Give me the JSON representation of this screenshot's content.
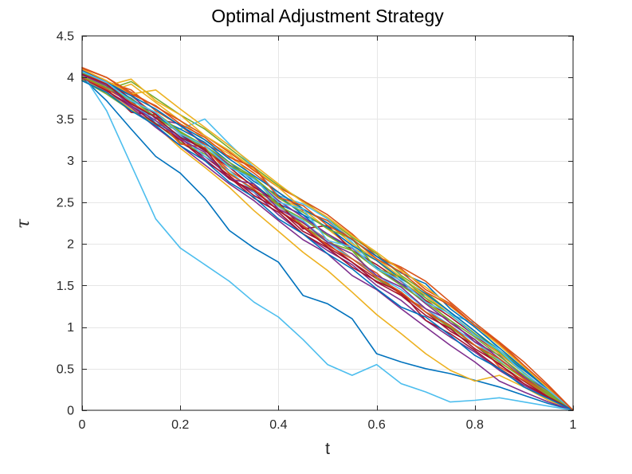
{
  "chart_data": {
    "type": "line",
    "title": "Optimal Adjustment Strategy",
    "xlabel": "t",
    "ylabel": "τ",
    "xlim": [
      0,
      1
    ],
    "ylim": [
      0,
      4.5
    ],
    "xticks": [
      0,
      0.2,
      0.4,
      0.6,
      0.8,
      1
    ],
    "xtick_labels": [
      "0",
      "0.2",
      "0.4",
      "0.6",
      "0.8",
      "1"
    ],
    "yticks": [
      0,
      0.5,
      1,
      1.5,
      2,
      2.5,
      3,
      3.5,
      4,
      4.5
    ],
    "ytick_labels": [
      "0",
      "0.5",
      "1",
      "1.5",
      "2",
      "2.5",
      "3",
      "3.5",
      "4",
      "4.5"
    ],
    "grid": true,
    "legend": false,
    "axis_color": "#262626",
    "grid_color": "#e6e6e6",
    "background": "#ffffff",
    "palette": [
      "#0072BD",
      "#D95319",
      "#EDB120",
      "#7E2F8E",
      "#77AC30",
      "#4DBEEE",
      "#A2142F"
    ],
    "x": [
      0,
      0.05,
      0.1,
      0.15,
      0.2,
      0.25,
      0.3,
      0.35,
      0.4,
      0.45,
      0.5,
      0.55,
      0.6,
      0.65,
      0.7,
      0.75,
      0.8,
      0.85,
      0.9,
      0.95,
      1
    ],
    "series": [
      {
        "color_index": 0,
        "values": [
          4.02,
          3.88,
          3.72,
          3.45,
          3.3,
          3.12,
          2.95,
          2.72,
          2.48,
          2.35,
          2.1,
          1.95,
          1.72,
          1.52,
          1.38,
          1.15,
          0.92,
          0.68,
          0.45,
          0.22,
          0
        ]
      },
      {
        "color_index": 1,
        "values": [
          4.08,
          3.95,
          3.85,
          3.6,
          3.42,
          3.2,
          3.05,
          2.85,
          2.62,
          2.4,
          2.28,
          2.05,
          1.85,
          1.7,
          1.45,
          1.28,
          1.02,
          0.8,
          0.52,
          0.25,
          0
        ]
      },
      {
        "color_index": 2,
        "values": [
          3.98,
          3.82,
          3.92,
          3.7,
          3.48,
          3.25,
          3.08,
          2.8,
          2.55,
          2.42,
          2.18,
          1.95,
          1.8,
          1.55,
          1.35,
          1.05,
          0.85,
          0.58,
          0.38,
          0.18,
          0
        ]
      },
      {
        "color_index": 3,
        "values": [
          4.05,
          3.9,
          3.68,
          3.52,
          3.28,
          3.02,
          2.78,
          2.62,
          2.35,
          2.12,
          1.92,
          1.75,
          1.5,
          1.32,
          1.08,
          0.88,
          0.7,
          0.48,
          0.3,
          0.15,
          0
        ]
      },
      {
        "color_index": 4,
        "values": [
          4.0,
          3.85,
          3.95,
          3.75,
          3.55,
          3.38,
          3.15,
          2.92,
          2.7,
          2.52,
          2.3,
          2.08,
          1.88,
          1.62,
          1.42,
          1.18,
          0.95,
          0.72,
          0.5,
          0.24,
          0
        ]
      },
      {
        "color_index": 5,
        "values": [
          4.1,
          3.95,
          3.7,
          3.42,
          3.38,
          3.5,
          3.2,
          2.92,
          2.58,
          2.48,
          2.3,
          2.02,
          1.7,
          1.5,
          1.35,
          1.15,
          1.05,
          0.72,
          0.45,
          0.2,
          0
        ]
      },
      {
        "color_index": 6,
        "values": [
          4.03,
          3.86,
          3.58,
          3.55,
          3.22,
          3.05,
          2.82,
          2.58,
          2.42,
          2.15,
          2.0,
          1.78,
          1.58,
          1.4,
          1.18,
          0.95,
          0.78,
          0.55,
          0.35,
          0.16,
          0
        ]
      },
      {
        "color_index": 0,
        "values": [
          4.0,
          3.72,
          3.38,
          3.05,
          2.85,
          2.55,
          2.16,
          1.95,
          1.78,
          1.38,
          1.28,
          1.1,
          0.68,
          0.58,
          0.5,
          0.44,
          0.36,
          0.28,
          0.18,
          0.08,
          0
        ]
      },
      {
        "color_index": 1,
        "values": [
          4.06,
          3.92,
          3.78,
          3.55,
          3.35,
          3.15,
          2.88,
          2.7,
          2.45,
          2.25,
          2.05,
          1.82,
          1.65,
          1.38,
          1.22,
          0.98,
          0.85,
          0.52,
          0.36,
          0.18,
          0
        ]
      },
      {
        "color_index": 2,
        "values": [
          4.01,
          3.82,
          3.62,
          3.42,
          3.15,
          2.92,
          2.68,
          2.4,
          2.15,
          1.9,
          1.68,
          1.42,
          1.15,
          0.92,
          0.68,
          0.48,
          0.35,
          0.42,
          0.28,
          0.12,
          0
        ]
      },
      {
        "color_index": 3,
        "values": [
          4.07,
          3.94,
          3.8,
          3.5,
          3.44,
          3.18,
          2.95,
          2.78,
          2.52,
          2.32,
          2.12,
          1.95,
          1.7,
          1.52,
          1.28,
          1.05,
          0.85,
          0.62,
          0.4,
          0.2,
          0
        ]
      },
      {
        "color_index": 4,
        "values": [
          3.97,
          3.8,
          3.6,
          3.45,
          3.22,
          3.08,
          2.85,
          2.65,
          2.48,
          2.22,
          2.02,
          1.92,
          1.58,
          1.42,
          1.18,
          1.0,
          0.78,
          0.58,
          0.38,
          0.18,
          0
        ]
      },
      {
        "color_index": 5,
        "values": [
          4.04,
          3.88,
          3.7,
          3.48,
          3.3,
          3.05,
          2.88,
          2.62,
          2.45,
          2.28,
          2.02,
          1.82,
          1.62,
          1.45,
          1.22,
          1.02,
          0.82,
          0.6,
          0.42,
          0.22,
          0
        ]
      },
      {
        "color_index": 6,
        "values": [
          4.09,
          3.96,
          3.74,
          3.56,
          3.32,
          3.12,
          2.92,
          2.68,
          2.5,
          2.18,
          2.22,
          1.92,
          1.75,
          1.55,
          1.32,
          1.12,
          0.9,
          0.68,
          0.45,
          0.22,
          0
        ]
      },
      {
        "color_index": 0,
        "values": [
          4.05,
          3.9,
          3.75,
          3.52,
          3.38,
          3.22,
          2.98,
          2.75,
          2.58,
          2.35,
          2.2,
          1.98,
          1.8,
          1.58,
          1.4,
          1.18,
          0.95,
          0.7,
          0.48,
          0.25,
          0
        ]
      },
      {
        "color_index": 1,
        "values": [
          4.12,
          4.0,
          3.82,
          3.65,
          3.48,
          3.3,
          3.1,
          2.88,
          2.68,
          2.52,
          2.35,
          2.12,
          1.85,
          1.72,
          1.55,
          1.3,
          1.05,
          0.82,
          0.58,
          0.3,
          0
        ]
      },
      {
        "color_index": 2,
        "values": [
          4.02,
          3.9,
          3.98,
          3.72,
          3.55,
          3.3,
          3.12,
          2.9,
          2.68,
          2.42,
          2.25,
          2.0,
          1.82,
          1.6,
          1.38,
          1.15,
          0.92,
          0.68,
          0.45,
          0.22,
          0
        ]
      },
      {
        "color_index": 3,
        "values": [
          3.99,
          3.84,
          3.64,
          3.4,
          3.18,
          2.95,
          2.72,
          2.52,
          2.28,
          2.05,
          1.88,
          1.62,
          1.45,
          1.22,
          1.0,
          0.78,
          0.58,
          0.35,
          0.22,
          0.1,
          0
        ]
      },
      {
        "color_index": 4,
        "values": [
          4.06,
          3.9,
          3.72,
          3.58,
          3.35,
          3.18,
          2.98,
          2.8,
          2.55,
          2.38,
          2.18,
          2.06,
          1.7,
          1.6,
          1.35,
          1.15,
          0.92,
          0.7,
          0.45,
          0.22,
          0
        ]
      },
      {
        "color_index": 5,
        "values": [
          4.05,
          3.6,
          2.95,
          2.3,
          1.95,
          1.75,
          1.55,
          1.3,
          1.12,
          0.85,
          0.55,
          0.42,
          0.55,
          0.32,
          0.22,
          0.1,
          0.12,
          0.15,
          0.1,
          0.05,
          0
        ]
      },
      {
        "color_index": 6,
        "values": [
          4.0,
          3.84,
          3.66,
          3.44,
          3.25,
          3.0,
          2.8,
          2.55,
          2.38,
          2.12,
          1.95,
          1.72,
          1.55,
          1.42,
          1.08,
          0.92,
          0.72,
          0.5,
          0.32,
          0.15,
          0
        ]
      },
      {
        "color_index": 0,
        "values": [
          4.08,
          3.94,
          3.78,
          3.62,
          3.42,
          3.25,
          3.02,
          2.82,
          2.62,
          2.42,
          2.25,
          2.05,
          1.85,
          1.65,
          1.52,
          1.22,
          1.0,
          0.75,
          0.5,
          0.25,
          0
        ]
      },
      {
        "color_index": 1,
        "values": [
          4.0,
          3.86,
          3.7,
          3.52,
          3.2,
          3.16,
          2.84,
          2.66,
          2.4,
          2.22,
          1.98,
          1.82,
          1.6,
          1.42,
          1.18,
          1.02,
          0.78,
          0.62,
          0.38,
          0.2,
          0
        ]
      },
      {
        "color_index": 2,
        "values": [
          4.1,
          3.96,
          3.8,
          3.85,
          3.62,
          3.4,
          3.18,
          2.95,
          2.72,
          2.5,
          2.32,
          2.1,
          1.9,
          1.68,
          1.48,
          1.25,
          1.02,
          0.78,
          0.52,
          0.26,
          0
        ]
      },
      {
        "color_index": 3,
        "values": [
          4.03,
          3.9,
          3.66,
          3.48,
          3.26,
          3.1,
          2.78,
          2.72,
          2.42,
          2.26,
          2.02,
          1.88,
          1.62,
          1.48,
          1.22,
          1.08,
          0.82,
          0.66,
          0.4,
          0.24,
          0
        ]
      },
      {
        "color_index": 4,
        "values": [
          4.01,
          3.88,
          3.74,
          3.52,
          3.34,
          3.14,
          2.94,
          2.8,
          2.46,
          2.3,
          2.1,
          1.92,
          1.7,
          1.5,
          1.3,
          1.08,
          0.88,
          0.65,
          0.42,
          0.2,
          0
        ]
      },
      {
        "color_index": 5,
        "values": [
          4.07,
          3.94,
          3.72,
          3.58,
          3.32,
          3.18,
          2.92,
          2.78,
          2.5,
          2.42,
          2.04,
          1.96,
          1.7,
          1.56,
          1.3,
          1.16,
          0.9,
          0.72,
          0.44,
          0.24,
          0
        ]
      },
      {
        "color_index": 6,
        "values": [
          4.04,
          3.92,
          3.68,
          3.52,
          3.28,
          3.14,
          2.78,
          2.64,
          2.4,
          2.2,
          1.96,
          1.78,
          1.54,
          1.38,
          1.14,
          0.98,
          0.74,
          0.56,
          0.32,
          0.16,
          0
        ]
      },
      {
        "color_index": 0,
        "values": [
          3.96,
          3.82,
          3.6,
          3.42,
          3.18,
          3.0,
          2.74,
          2.56,
          2.3,
          2.12,
          1.88,
          1.7,
          1.46,
          1.24,
          1.12,
          0.9,
          0.66,
          0.5,
          0.28,
          0.14,
          0
        ]
      },
      {
        "color_index": 1,
        "values": [
          4.11,
          4.0,
          3.8,
          3.66,
          3.44,
          3.28,
          3.04,
          2.92,
          2.56,
          2.46,
          2.22,
          2.06,
          1.82,
          1.66,
          1.42,
          1.26,
          1.02,
          0.82,
          0.54,
          0.28,
          0
        ]
      }
    ]
  }
}
